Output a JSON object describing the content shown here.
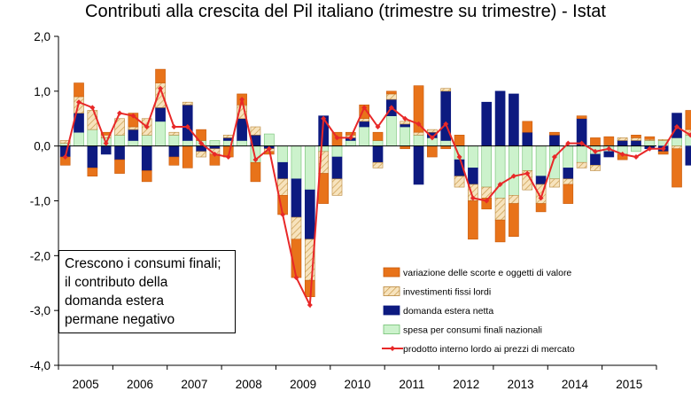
{
  "chart_data": {
    "type": "bar",
    "title": "Contributi alla crescita del Pil italiano (trimestre su trimestre) - Istat",
    "ylim": [
      -4.0,
      2.0
    ],
    "yticks": [
      2.0,
      1.0,
      0.0,
      -1.0,
      -2.0,
      -3.0,
      -4.0
    ],
    "ytick_labels": [
      "2,0",
      "1,0",
      "0,0",
      "-1,0",
      "-2,0",
      "-3,0",
      "-4,0"
    ],
    "year_labels": [
      "2005",
      "2006",
      "2007",
      "2008",
      "2009",
      "2010",
      "2011",
      "2012",
      "2013",
      "2014",
      "2015"
    ],
    "grid": false,
    "stacked": true,
    "legend_position": "bottom-right",
    "annotation": "Crescono i consumi finali;\nil contributo della\ndomanda estera\npermane negativo",
    "colors": {
      "consumi": "#ccf2cc",
      "domanda_estera": "#0d1a80",
      "investimenti": "#f5d9a8",
      "scorte": "#e8731a",
      "pil": "#e82828"
    },
    "series": [
      {
        "name": "spesa per consumi finali nazionali",
        "key": "consumi",
        "values": [
          0.05,
          0.25,
          0.3,
          0.15,
          0.2,
          0.1,
          0.2,
          0.45,
          0.2,
          0.1,
          0.1,
          0.1,
          0.1,
          0.1,
          -0.3,
          0.22,
          -0.3,
          -0.6,
          -0.8,
          -0.1,
          -0.2,
          0.1,
          0.35,
          0.1,
          0.55,
          0.35,
          0.2,
          0.15,
          0.1,
          -0.25,
          -0.4,
          -0.75,
          -0.95,
          -0.9,
          -0.45,
          -0.55,
          -0.6,
          -0.4,
          -0.3,
          -0.15,
          -0.1,
          -0.15,
          -0.1,
          0.1,
          0.1,
          0.15,
          0.2,
          0.15,
          0.1,
          0.2,
          0.15
        ]
      },
      {
        "name": "domanda estera netta",
        "key": "domanda_estera",
        "values": [
          -0.2,
          0.35,
          -0.4,
          -0.15,
          -0.25,
          0.2,
          -0.45,
          0.25,
          -0.2,
          0.65,
          -0.1,
          -0.05,
          0.05,
          0.4,
          0.2,
          -0.05,
          -0.3,
          -0.7,
          -0.9,
          0.55,
          -0.4,
          0.05,
          0.1,
          -0.3,
          0.3,
          0.05,
          -0.7,
          0.1,
          0.9,
          -0.3,
          -0.3,
          0.8,
          1.0,
          0.95,
          0.25,
          -0.15,
          0.2,
          -0.2,
          0.5,
          -0.2,
          -0.1,
          0.1,
          0.1,
          -0.05,
          -0.1,
          0.45,
          -0.35,
          0.05,
          -0.1,
          0.05,
          0.05
        ]
      },
      {
        "name": "investimenti fissi lordi",
        "key": "investimenti",
        "values": [
          0.05,
          0.3,
          0.35,
          0.05,
          0.3,
          0.05,
          0.3,
          0.45,
          0.05,
          0.05,
          -0.1,
          -0.1,
          0.05,
          0.25,
          0.15,
          -0.05,
          -0.3,
          -0.4,
          -0.75,
          -0.4,
          -0.3,
          0.05,
          0.05,
          -0.1,
          0.1,
          0.05,
          0.05,
          0.05,
          0.05,
          -0.2,
          -0.3,
          -0.2,
          -0.4,
          -0.15,
          -0.35,
          -0.35,
          -0.15,
          -0.1,
          -0.1,
          -0.1,
          0.02,
          0.05,
          0.05,
          0.02,
          0.02,
          -0.05,
          0.1,
          0.02,
          0.05,
          0.05,
          0.05
        ]
      },
      {
        "name": "variazione delle scorte e oggetti di valore",
        "key": "scorte",
        "values": [
          -0.15,
          0.25,
          -0.15,
          0.05,
          -0.25,
          0.25,
          -0.2,
          0.25,
          -0.15,
          -0.4,
          0.2,
          -0.2,
          -0.2,
          0.2,
          -0.35,
          -0.05,
          -0.35,
          -0.7,
          -0.3,
          -0.55,
          0.25,
          0.05,
          0.25,
          0.15,
          0.05,
          -0.05,
          0.85,
          -0.2,
          -0.05,
          0.2,
          -0.7,
          -0.2,
          -0.4,
          -0.6,
          0.2,
          -0.15,
          0.05,
          -0.35,
          0.05,
          0.15,
          0.15,
          -0.1,
          0.05,
          0.05,
          -0.05,
          -0.7,
          0.35,
          0.1,
          0.05,
          0.35,
          0.05
        ]
      },
      {
        "name": "prodotto interno lordo ai prezzi di mercato",
        "key": "pil",
        "type": "line",
        "values": [
          -0.2,
          0.8,
          0.7,
          0.05,
          0.6,
          0.55,
          0.35,
          1.05,
          0.35,
          0.35,
          0.05,
          -0.15,
          -0.2,
          0.85,
          -0.25,
          -0.05,
          -1.25,
          -2.4,
          -2.9,
          0.5,
          0.15,
          0.15,
          0.7,
          0.35,
          0.7,
          0.5,
          0.4,
          0.15,
          0.4,
          -0.2,
          -0.95,
          -1.0,
          -0.7,
          -0.55,
          -0.5,
          -0.95,
          -0.2,
          0.05,
          0.05,
          -0.1,
          -0.05,
          -0.15,
          -0.2,
          -0.05,
          -0.05,
          0.35,
          0.2,
          0.1,
          0.2,
          0.25,
          0.15
        ]
      }
    ],
    "legend_order": [
      "scorte",
      "investimenti",
      "domanda_estera",
      "consumi",
      "pil"
    ]
  }
}
